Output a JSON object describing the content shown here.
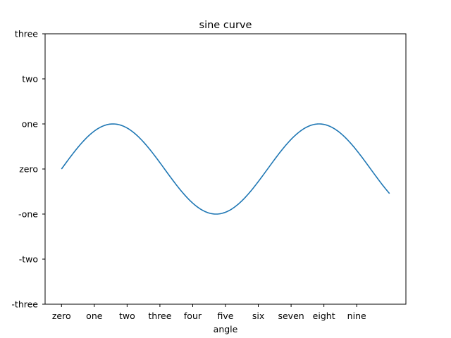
{
  "chart_data": {
    "type": "line",
    "title": "sine curve",
    "xlabel": "angle",
    "ylabel": "",
    "xlim": [
      -0.5,
      10.5
    ],
    "ylim": [
      -3,
      3
    ],
    "grid": false,
    "xticks": [
      0,
      1,
      2,
      3,
      4,
      5,
      6,
      7,
      8,
      9
    ],
    "xtick_labels": [
      "zero",
      "one",
      "two",
      "three",
      "four",
      "five",
      "six",
      "seven",
      "eight",
      "nine"
    ],
    "yticks": [
      -3,
      -2,
      -1,
      0,
      1,
      2,
      3
    ],
    "ytick_labels": [
      "-three",
      "-two",
      "-one",
      "zero",
      "one",
      "two",
      "three"
    ],
    "series": [
      {
        "color": "#1f77b4",
        "function": "sin(x)",
        "x_range": [
          0,
          10
        ],
        "x": [
          0,
          0.5,
          1.0,
          1.5,
          2.0,
          2.5,
          3.0,
          3.5,
          4.0,
          4.5,
          5.0,
          5.5,
          6.0,
          6.5,
          7.0,
          7.5,
          8.0,
          8.5,
          9.0,
          9.5,
          10.0
        ],
        "y": [
          0.0,
          0.479,
          0.841,
          0.997,
          0.909,
          0.598,
          0.141,
          -0.351,
          -0.757,
          -0.978,
          -0.959,
          -0.706,
          -0.279,
          0.215,
          0.657,
          0.938,
          0.989,
          0.798,
          0.412,
          -0.075,
          -0.544
        ]
      }
    ]
  }
}
